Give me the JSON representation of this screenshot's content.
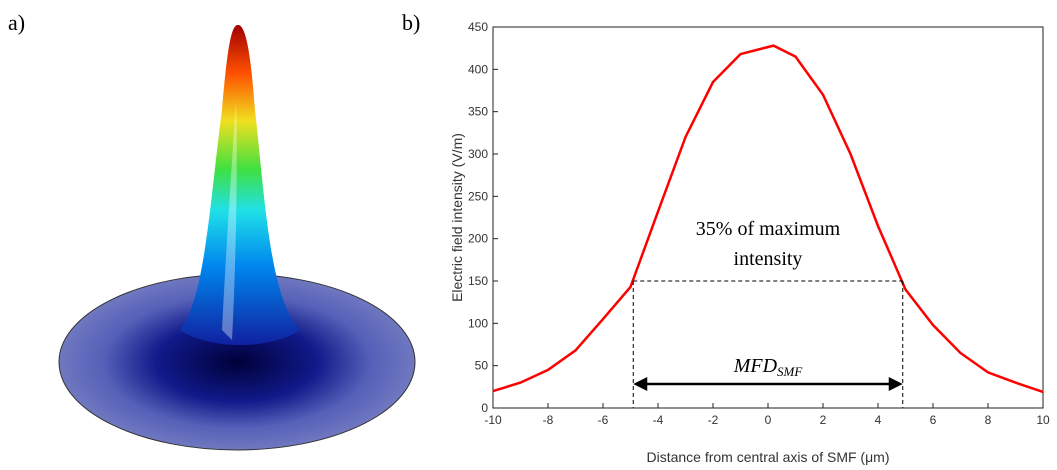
{
  "panel_labels": [
    "a)",
    "b)"
  ],
  "chart_data": {
    "type": "line",
    "x_label": "Distance from central axis of SMF (μm)",
    "y_label": "Electric field intensity (V/m)",
    "x": [
      -10,
      -9,
      -8,
      -7,
      -6,
      -5,
      -4,
      -3,
      -2,
      -1,
      0.2,
      1,
      2,
      3,
      4,
      5,
      6,
      7,
      8,
      9,
      10
    ],
    "series": [
      {
        "name": "Electric field intensity",
        "color": "#ff0000",
        "values": [
          20,
          30,
          45,
          68,
          105,
          143,
          232,
          320,
          385,
          418,
          428,
          415,
          370,
          300,
          215,
          140,
          98,
          65,
          42,
          30,
          19
        ]
      }
    ],
    "xlim": [
      -10,
      10
    ],
    "xticks": [
      -10,
      -8,
      -6,
      -4,
      -2,
      0,
      2,
      4,
      6,
      8,
      10
    ],
    "ylim": [
      0,
      450
    ],
    "yticks": [
      0,
      50,
      100,
      150,
      200,
      250,
      300,
      350,
      400,
      450
    ],
    "annotations": {
      "threshold_text": [
        "35% of maximum",
        "intensity"
      ],
      "threshold": 150,
      "mfd_label": "MFD",
      "mfd_subscript": "SMF",
      "mfd_edges": [
        -4.9,
        4.9
      ]
    }
  }
}
